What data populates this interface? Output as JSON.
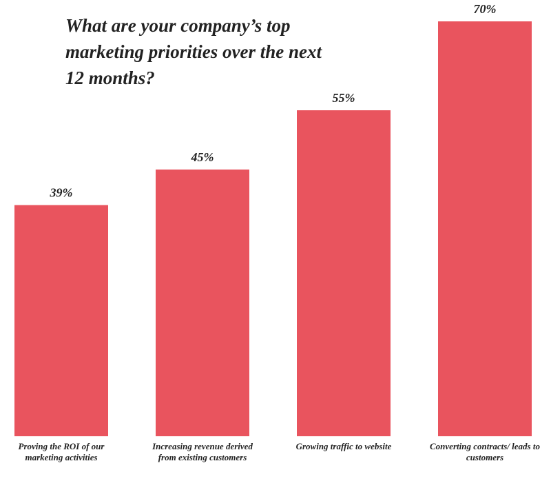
{
  "chart_data": {
    "type": "bar",
    "title": "What are your company’s top marketing priorities over the next 12 months?",
    "categories": [
      "Proving the ROI of our marketing activities",
      "Increasing revenue derived from existing customers",
      "Growing traffic to website",
      "Converting contracts/ leads to customers"
    ],
    "values": [
      39,
      45,
      55,
      70
    ],
    "value_labels": [
      "39%",
      "45%",
      "55%",
      "70%"
    ],
    "color": "#e9545e"
  }
}
